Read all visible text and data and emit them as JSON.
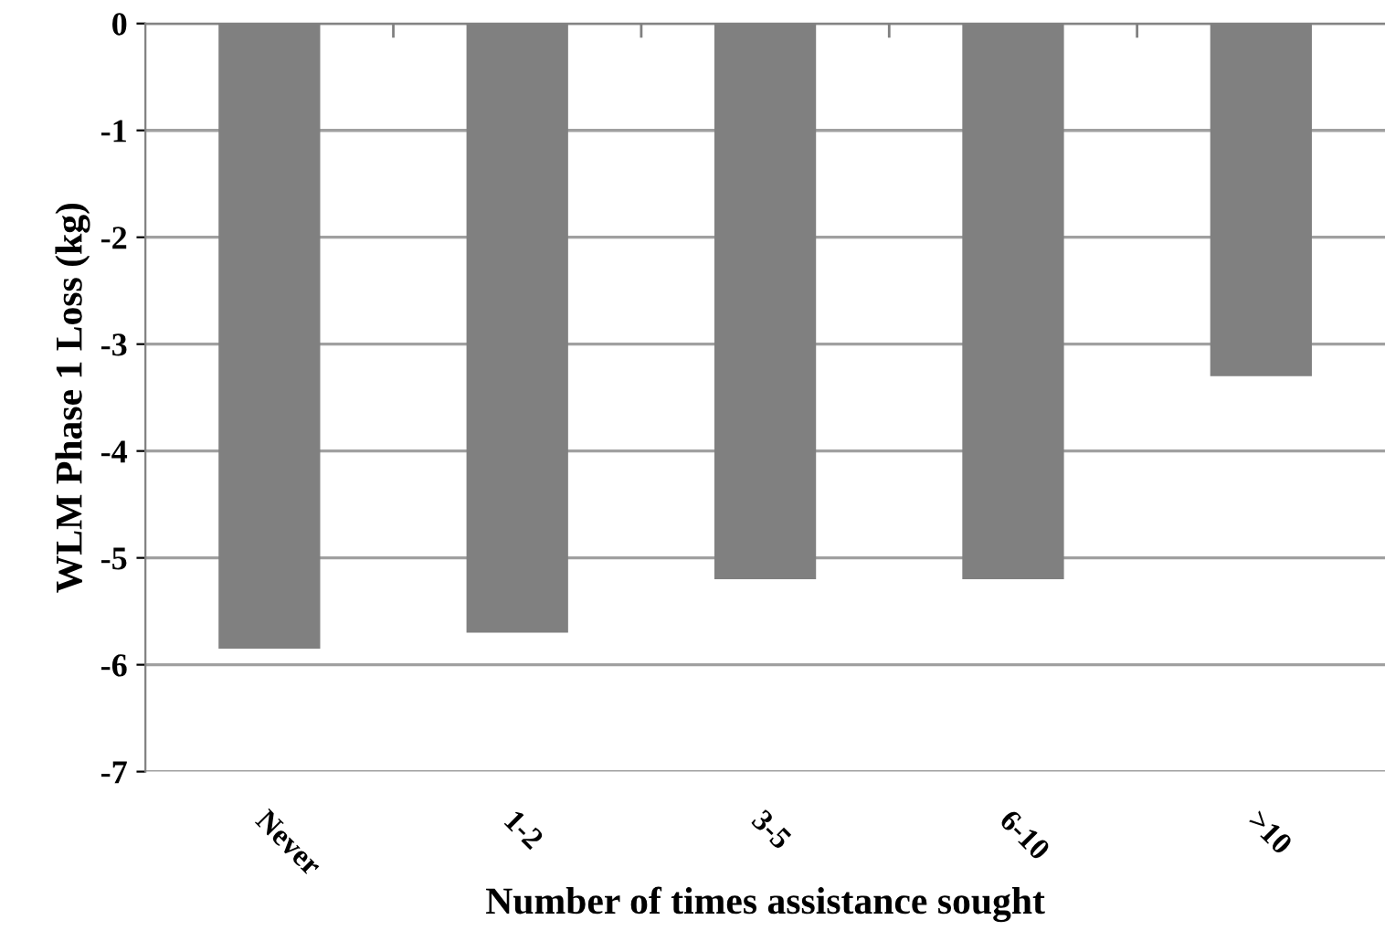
{
  "chart_data": {
    "type": "bar",
    "xlabel": "Number of times assistance sought",
    "ylabel": "WLM Phase 1 Loss (kg)",
    "categories": [
      "Never",
      "1-2",
      "3-5",
      "6-10",
      ">10"
    ],
    "values": [
      -5.85,
      -5.7,
      -5.2,
      -5.2,
      -3.3
    ],
    "color": "#808080",
    "ylim": [
      -7,
      0
    ],
    "yticks": [
      -7,
      -6,
      -5,
      -4,
      -3,
      -2,
      -1,
      0
    ],
    "grid": "y"
  }
}
